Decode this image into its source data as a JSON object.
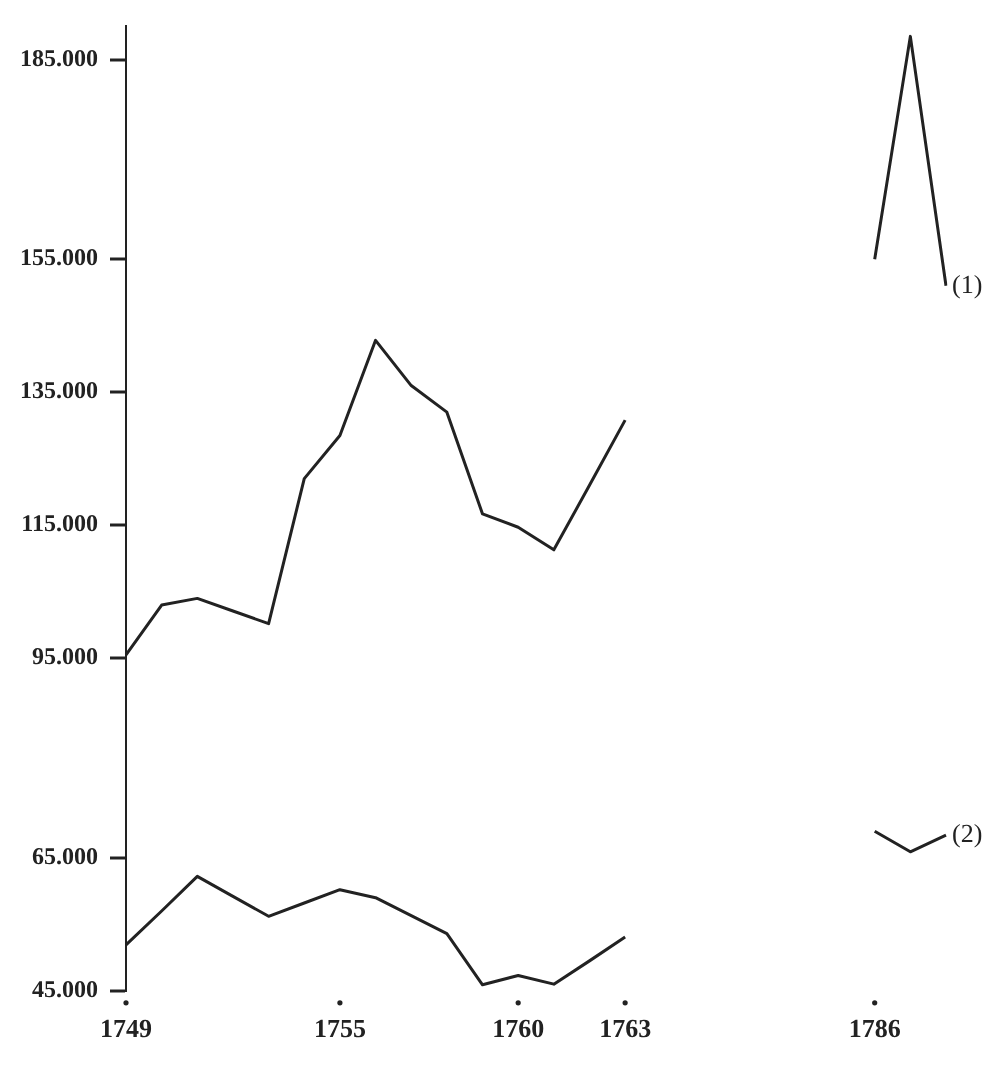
{
  "chart_data": {
    "type": "line",
    "categories": [
      "1749",
      null,
      null,
      null,
      null,
      null,
      "1755",
      null,
      null,
      null,
      null,
      "1760",
      null,
      null,
      "1763",
      null,
      null,
      null,
      null,
      null,
      null,
      "1786",
      null,
      null
    ],
    "series": [
      {
        "name": "(1)",
        "color": "#222222",
        "values": [
          95500,
          103000,
          104000,
          102100,
          100200,
          122000,
          128500,
          142800,
          136000,
          132000,
          116700,
          114700,
          111300,
          121000,
          130800,
          null,
          null,
          null,
          null,
          null,
          null,
          155000,
          188500,
          151000
        ]
      },
      {
        "name": "(2)",
        "color": "#222222",
        "values": [
          51900,
          57000,
          62200,
          59200,
          56200,
          58200,
          60200,
          59000,
          56300,
          53600,
          45900,
          47300,
          46000,
          49500,
          53100,
          null,
          null,
          null,
          null,
          null,
          null,
          69000,
          65900,
          68400
        ]
      }
    ],
    "ylim": [
      45000,
      190000
    ],
    "yticks": [
      {
        "value": 45000,
        "label": "45.000"
      },
      {
        "value": 65000,
        "label": "65.000"
      },
      {
        "value": 95000,
        "label": "95.000"
      },
      {
        "value": 115000,
        "label": "115.000"
      },
      {
        "value": 135000,
        "label": "135.000"
      },
      {
        "value": 155000,
        "label": "155.000"
      },
      {
        "value": 185000,
        "label": "185.000"
      }
    ],
    "grid": false,
    "legend": false,
    "marker": "none",
    "line_style": "solid"
  }
}
